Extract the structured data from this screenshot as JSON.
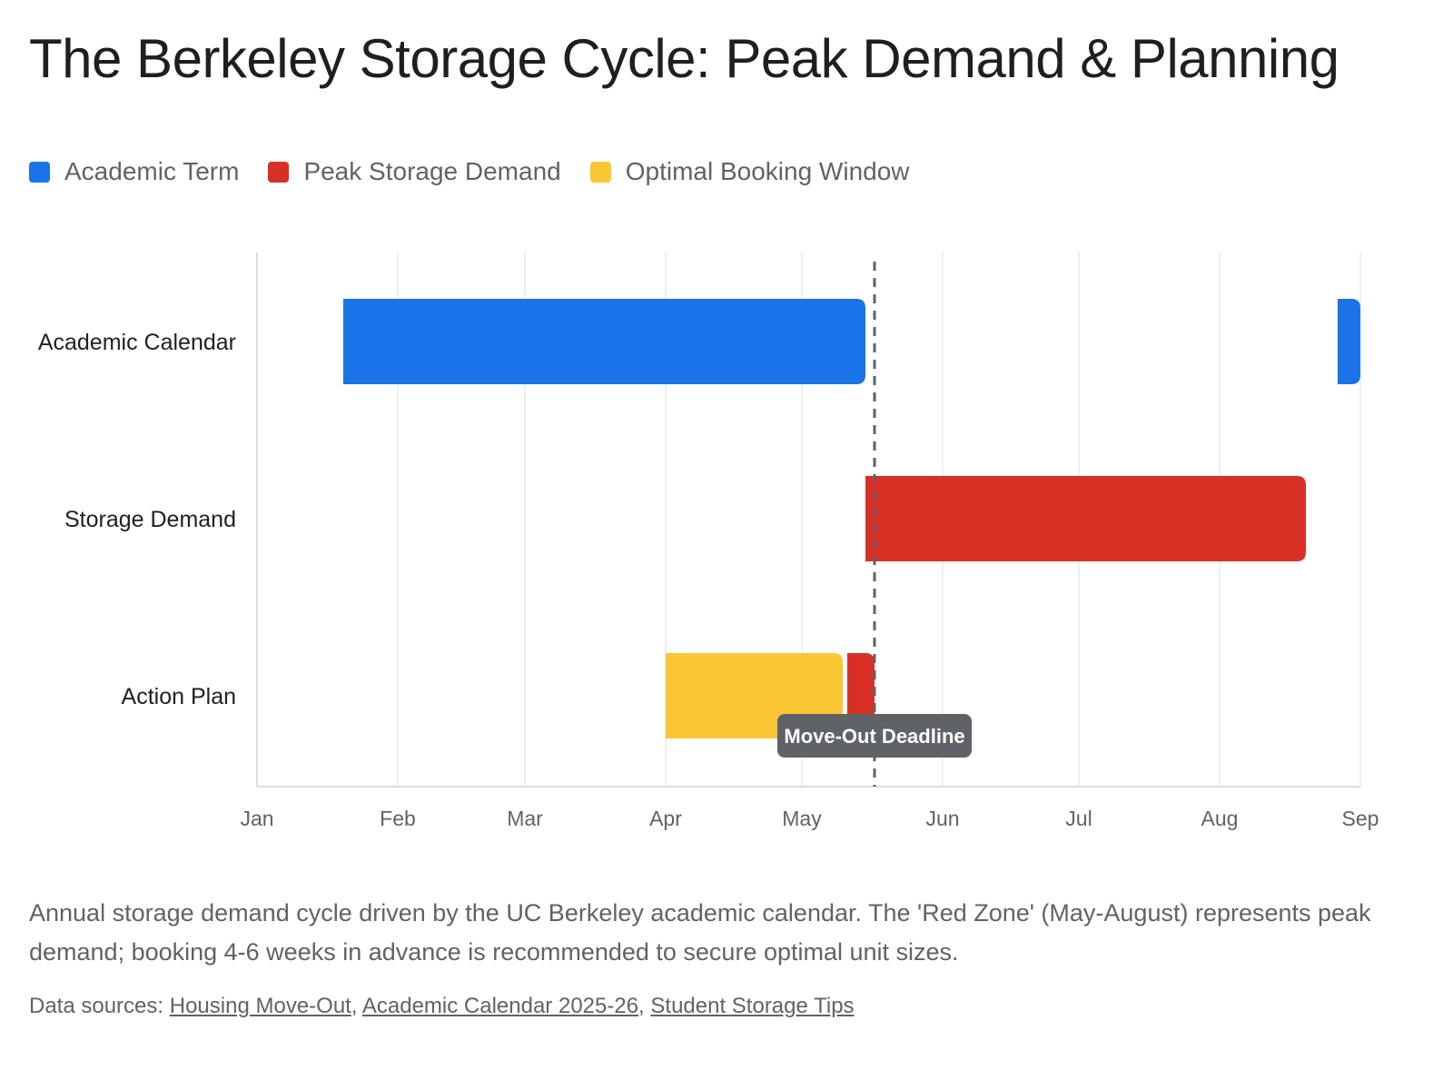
{
  "title": "The Berkeley Storage Cycle: Peak Demand & Planning",
  "legend": [
    {
      "label": "Academic Term",
      "color": "#1a73e8"
    },
    {
      "label": "Peak Storage Demand",
      "color": "#d93025"
    },
    {
      "label": "Optimal Booking Window",
      "color": "#fbc634"
    }
  ],
  "chart_data": {
    "type": "gantt",
    "x_axis": {
      "ticks": [
        "Jan",
        "Feb",
        "Mar",
        "Apr",
        "May",
        "Jun",
        "Jul",
        "Aug",
        "Sep"
      ],
      "range": [
        "2025-01-01",
        "2025-09-01"
      ]
    },
    "rows": [
      "Academic Calendar",
      "Storage Demand",
      "Action Plan"
    ],
    "tasks": [
      {
        "row": "Academic Calendar",
        "category": "Academic Term",
        "start": "2025-01-20",
        "end": "2025-05-15"
      },
      {
        "row": "Academic Calendar",
        "category": "Academic Term",
        "start": "2025-08-27",
        "end": "2025-09-01"
      },
      {
        "row": "Storage Demand",
        "category": "Peak Storage Demand",
        "start": "2025-05-15",
        "end": "2025-08-20"
      },
      {
        "row": "Action Plan",
        "category": "Optimal Booking Window",
        "start": "2025-04-01",
        "end": "2025-05-10"
      },
      {
        "row": "Action Plan",
        "category": "Peak Storage Demand",
        "start": "2025-05-11",
        "end": "2025-05-17"
      }
    ],
    "reference_line": {
      "date": "2025-05-17",
      "label": "Move-Out Deadline",
      "style": "dashed"
    }
  },
  "caption": "Annual storage demand cycle driven by the UC Berkeley academic calendar. The 'Red Zone' (May-August) represents peak demand; booking 4-6 weeks in advance is recommended to secure optimal unit sizes.",
  "sources": {
    "prefix": "Data sources:",
    "links": [
      "Housing Move-Out",
      "Academic Calendar 2025-26",
      "Student Storage Tips"
    ]
  }
}
